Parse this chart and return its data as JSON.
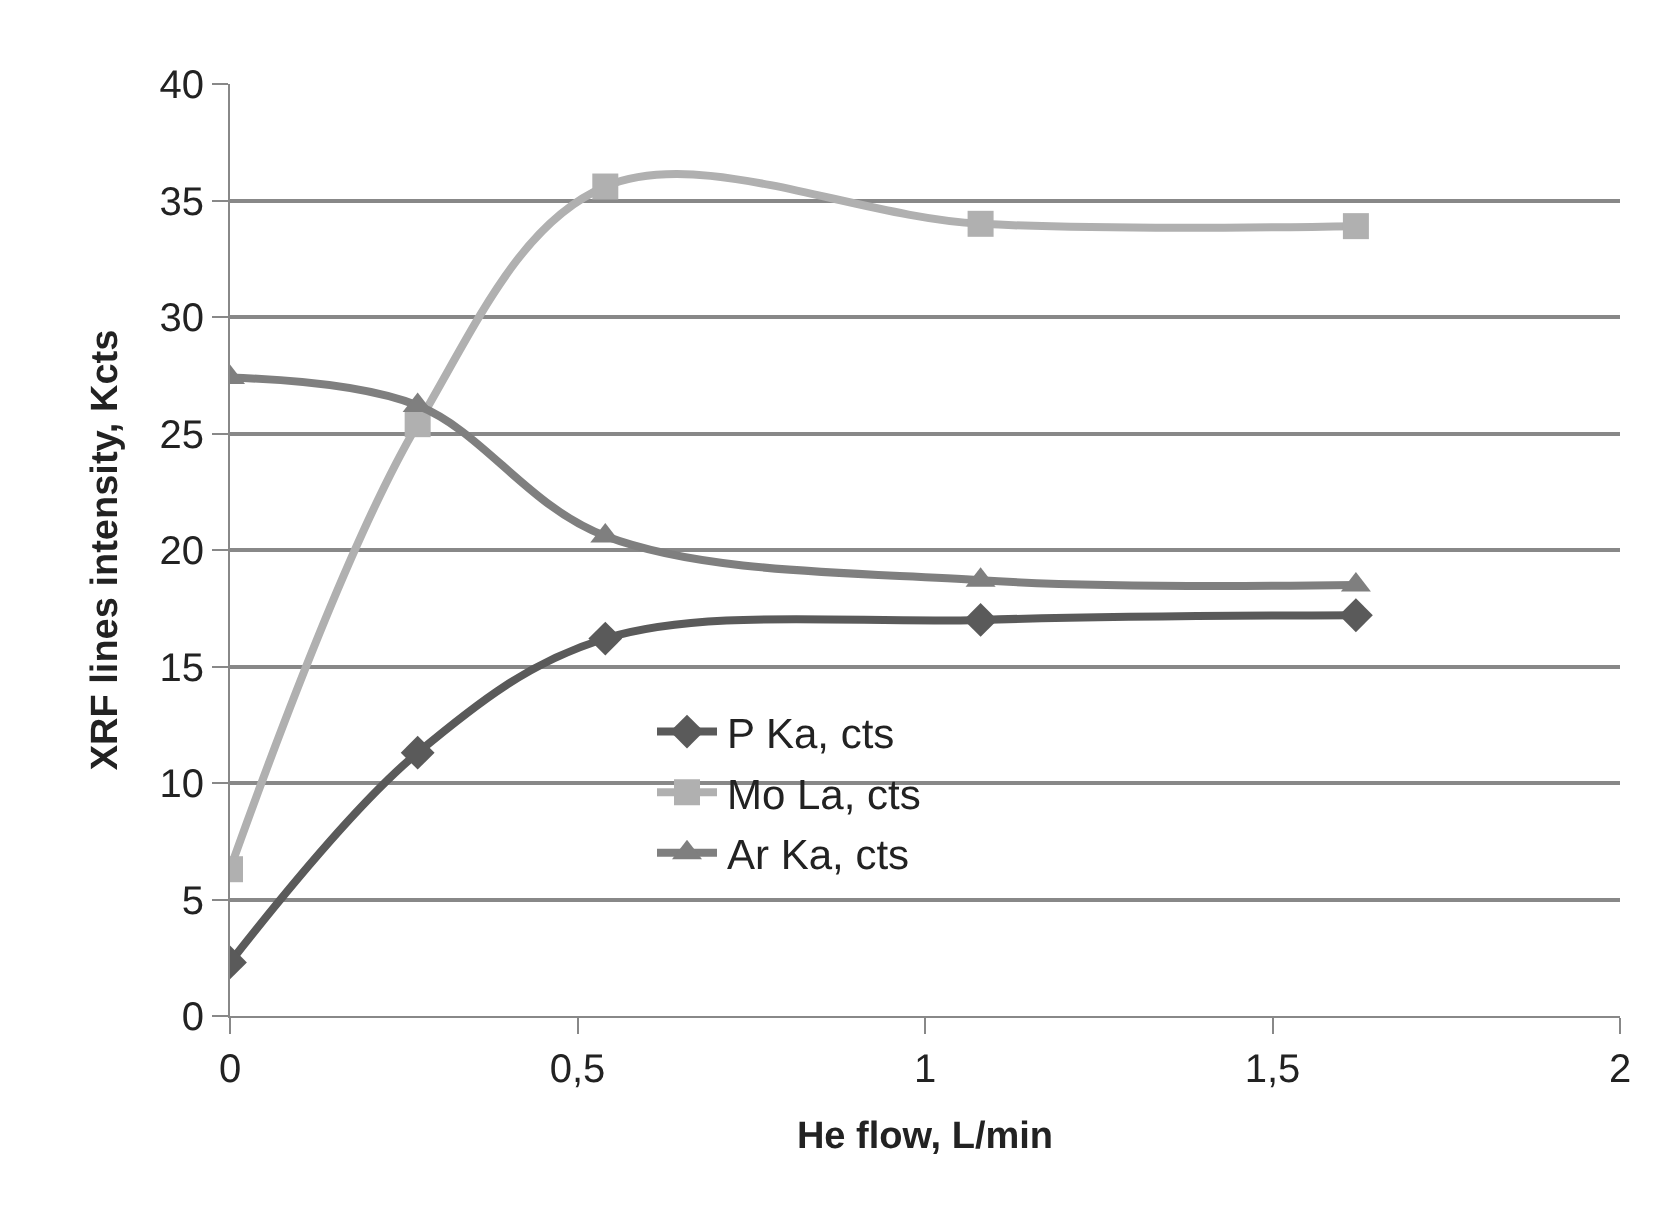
{
  "chart_data": {
    "type": "line",
    "xlabel": "He flow, L/min",
    "ylabel": "XRF lines intensity, Kcts",
    "x": [
      0,
      0.27,
      0.54,
      1.08,
      1.62
    ],
    "series": [
      {
        "name": "P Ka, cts",
        "color": "#5a5a5a",
        "marker": "diamond",
        "values": [
          2.3,
          11.3,
          16.2,
          17.0,
          17.2
        ]
      },
      {
        "name": "Mo La, cts",
        "color": "#b0b0b0",
        "marker": "square",
        "values": [
          6.3,
          25.4,
          35.6,
          34.0,
          33.9
        ]
      },
      {
        "name": "Ar Ka, cts",
        "color": "#7f7f7f",
        "marker": "triangle",
        "values": [
          27.4,
          26.2,
          20.6,
          18.7,
          18.5
        ]
      }
    ],
    "xlim": [
      0,
      2
    ],
    "xticks": [
      0,
      {
        "value": 0.5,
        "label": "0,5"
      },
      1,
      {
        "value": 1.5,
        "label": "1,5"
      },
      2
    ],
    "ylim": [
      0,
      40
    ],
    "yticks": [
      0,
      5,
      10,
      15,
      20,
      25,
      30,
      35,
      40
    ],
    "grid": "y",
    "legend": "center",
    "line_style": "solid"
  }
}
